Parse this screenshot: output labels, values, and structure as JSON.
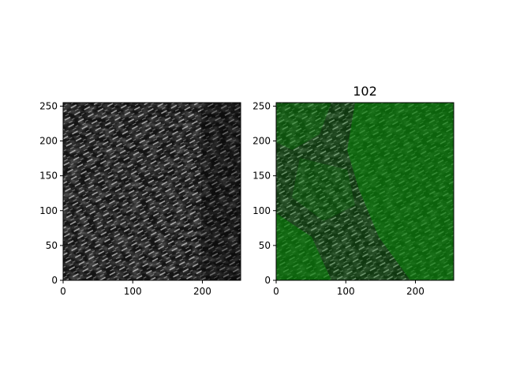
{
  "figure": {
    "background": "#ffffff"
  },
  "chart_data": [
    {
      "type": "heatmap",
      "title": "",
      "content": "grayscale image",
      "colormap": "gray",
      "xlim": [
        0,
        255
      ],
      "ylim": [
        0,
        255
      ],
      "x_ticks": [
        0,
        100,
        200
      ],
      "y_ticks": [
        0,
        50,
        100,
        150,
        200,
        250
      ],
      "grid": false
    },
    {
      "type": "heatmap",
      "title": "102",
      "content": "grayscale image with green segmentation overlay",
      "colormap": "gray",
      "overlay_color": "#0a8a0a",
      "xlim": [
        0,
        255
      ],
      "ylim": [
        0,
        255
      ],
      "x_ticks": [
        0,
        100,
        200
      ],
      "y_ticks": [
        0,
        50,
        100,
        150,
        200,
        250
      ],
      "grid": false
    }
  ]
}
